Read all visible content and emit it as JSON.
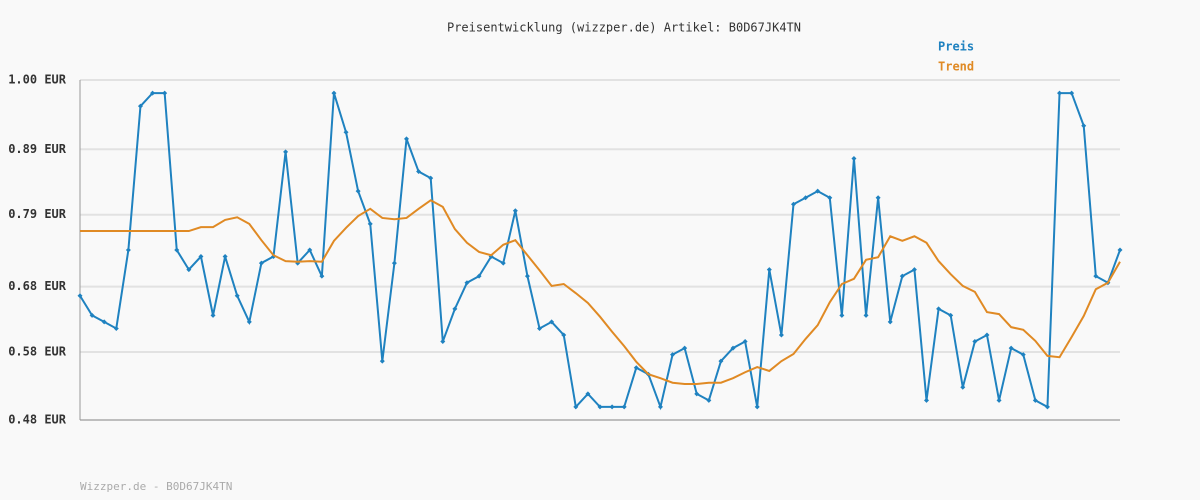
{
  "chart_data": {
    "type": "line",
    "title": "Preisentwicklung (wizzper.de) Artikel: B0D67JK4TN",
    "footer": "Wizzper.de - B0D67JK4TN",
    "legend": "top-right",
    "grid": true,
    "ylim": [
      0.48,
      1.0
    ],
    "yticks": [
      {
        "value": 0.48,
        "label": "0.48 EUR"
      },
      {
        "value": 0.584,
        "label": "0.58 EUR"
      },
      {
        "value": 0.684,
        "label": "0.68 EUR"
      },
      {
        "value": 0.794,
        "label": "0.79 EUR"
      },
      {
        "value": 0.894,
        "label": "0.89 EUR"
      },
      {
        "value": 1.0,
        "label": "1.00 EUR"
      }
    ],
    "series": [
      {
        "name": "Preis",
        "color": "#1f82c0",
        "markers": true,
        "values": [
          0.67,
          0.64,
          0.63,
          0.62,
          0.74,
          0.96,
          0.98,
          0.98,
          0.74,
          0.71,
          0.73,
          0.64,
          0.73,
          0.67,
          0.63,
          0.72,
          0.73,
          0.89,
          0.72,
          0.74,
          0.7,
          0.98,
          0.92,
          0.83,
          0.78,
          0.57,
          0.72,
          0.91,
          0.86,
          0.85,
          0.6,
          0.65,
          0.69,
          0.7,
          0.73,
          0.72,
          0.8,
          0.7,
          0.62,
          0.63,
          0.61,
          0.5,
          0.52,
          0.5,
          0.5,
          0.5,
          0.56,
          0.55,
          0.5,
          0.58,
          0.59,
          0.52,
          0.51,
          0.57,
          0.59,
          0.6,
          0.5,
          0.71,
          0.61,
          0.81,
          0.82,
          0.83,
          0.82,
          0.64,
          0.88,
          0.64,
          0.82,
          0.63,
          0.7,
          0.71,
          0.51,
          0.65,
          0.64,
          0.53,
          0.6,
          0.61,
          0.51,
          0.59,
          0.58,
          0.51,
          0.5,
          0.98,
          0.98,
          0.93,
          0.7,
          0.69,
          0.74
        ]
      },
      {
        "name": "Trend",
        "color": "#e08a24",
        "markers": false,
        "values": [
          0.769,
          0.769,
          0.769,
          0.769,
          0.769,
          0.769,
          0.769,
          0.769,
          0.769,
          0.769,
          0.775,
          0.775,
          0.786,
          0.79,
          0.78,
          0.755,
          0.732,
          0.723,
          0.722,
          0.723,
          0.722,
          0.754,
          0.774,
          0.792,
          0.803,
          0.789,
          0.787,
          0.789,
          0.803,
          0.816,
          0.806,
          0.772,
          0.751,
          0.737,
          0.732,
          0.748,
          0.755,
          0.732,
          0.709,
          0.685,
          0.688,
          0.674,
          0.659,
          0.638,
          0.615,
          0.593,
          0.569,
          0.55,
          0.544,
          0.537,
          0.535,
          0.535,
          0.537,
          0.537,
          0.544,
          0.553,
          0.561,
          0.555,
          0.57,
          0.581,
          0.604,
          0.625,
          0.66,
          0.688,
          0.696,
          0.725,
          0.729,
          0.761,
          0.754,
          0.761,
          0.751,
          0.723,
          0.703,
          0.685,
          0.676,
          0.645,
          0.642,
          0.622,
          0.618,
          0.601,
          0.578,
          0.576,
          0.607,
          0.639,
          0.68,
          0.69,
          0.722
        ]
      }
    ]
  }
}
